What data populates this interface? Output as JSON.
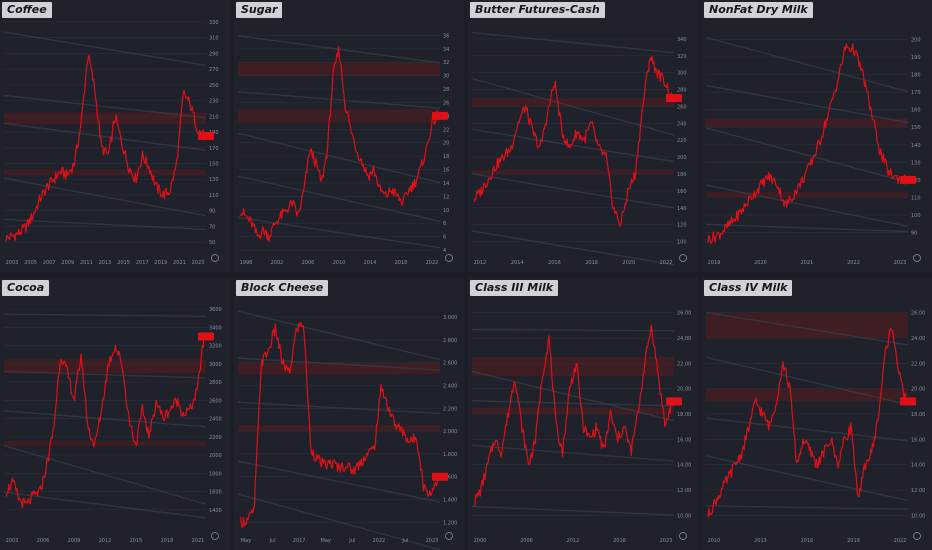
{
  "colors": {
    "background": "#1f222b",
    "line": "#e01018",
    "badge": "#e01018",
    "band": "#4a1e20",
    "text": "#8a8f9a"
  },
  "chart_data": [
    {
      "type": "line",
      "title": "Coffee",
      "years": [
        "2003",
        "2005",
        "2007",
        "2009",
        "2011",
        "2013",
        "2015",
        "2017",
        "2019",
        "2021",
        "2023"
      ],
      "ylim": [
        40,
        330
      ],
      "y_ticks": [
        "330",
        "310",
        "290",
        "270",
        "250",
        "230",
        "210",
        "190",
        "170",
        "150",
        "130",
        "110",
        "90",
        "70",
        "50"
      ],
      "values": [
        55,
        58,
        62,
        70,
        85,
        105,
        120,
        130,
        140,
        135,
        150,
        200,
        290,
        245,
        170,
        160,
        210,
        175,
        145,
        130,
        160,
        145,
        120,
        110,
        115,
        150,
        240,
        225,
        195,
        185
      ],
      "last_label": "",
      "bands": [
        [
          200,
          215
        ],
        [
          135,
          142
        ]
      ]
    },
    {
      "type": "line",
      "title": "Sugar",
      "years": [
        "1998",
        "2002",
        "2006",
        "2010",
        "2014",
        "2018",
        "2022"
      ],
      "ylim": [
        4,
        38
      ],
      "y_ticks": [
        "36",
        "34",
        "32",
        "30",
        "28",
        "26",
        "24",
        "22",
        "20",
        "18",
        "16",
        "14",
        "12",
        "10",
        "8",
        "6",
        "4"
      ],
      "values": [
        10,
        9,
        8,
        6,
        7,
        6,
        8,
        9,
        10,
        11,
        9,
        13,
        19,
        17,
        14,
        19,
        30,
        34,
        26,
        22,
        19,
        17,
        15,
        16,
        13,
        12,
        13,
        12,
        11,
        13,
        14,
        16,
        19,
        23,
        24
      ],
      "last_label": "",
      "bands": [
        [
          30,
          32
        ],
        [
          23,
          25
        ]
      ]
    },
    {
      "type": "line",
      "title": "Butter Futures-Cash",
      "years": [
        "2012",
        "2014",
        "2016",
        "2018",
        "2020",
        "2022"
      ],
      "ylim": [
        90,
        360
      ],
      "y_ticks": [
        "340",
        "320",
        "300",
        "280",
        "260",
        "240",
        "220",
        "200",
        "180",
        "160",
        "140",
        "120",
        "100"
      ],
      "values": [
        150,
        160,
        175,
        190,
        200,
        210,
        240,
        260,
        230,
        210,
        250,
        290,
        230,
        210,
        230,
        220,
        240,
        210,
        200,
        140,
        120,
        160,
        180,
        260,
        320,
        300,
        290,
        270
      ],
      "last_label": "",
      "bands": [
        [
          260,
          270
        ],
        [
          180,
          185
        ]
      ]
    },
    {
      "type": "line",
      "title": "NonFat Dry Milk",
      "years": [
        "2019",
        "2020",
        "2021",
        "2022",
        "2023"
      ],
      "ylim": [
        80,
        210
      ],
      "y_ticks": [
        "200",
        "190",
        "180",
        "170",
        "160",
        "150",
        "140",
        "130",
        "120",
        "110",
        "100",
        "90"
      ],
      "values": [
        86,
        88,
        92,
        97,
        103,
        110,
        116,
        122,
        118,
        105,
        112,
        120,
        130,
        142,
        158,
        175,
        196,
        194,
        180,
        158,
        136,
        124,
        121,
        120
      ],
      "last_label": "",
      "bands": [
        [
          150,
          155
        ],
        [
          110,
          113
        ]
      ]
    },
    {
      "type": "line",
      "title": "Cocoa",
      "years": [
        "2003",
        "2006",
        "2009",
        "2012",
        "2015",
        "2018",
        "2021"
      ],
      "ylim": [
        1200,
        3700
      ],
      "y_ticks": [
        "3600",
        "3400",
        "3200",
        "3000",
        "2800",
        "2600",
        "2400",
        "2200",
        "2000",
        "1800",
        "1600",
        "1400"
      ],
      "values": [
        1600,
        1700,
        1500,
        1450,
        1550,
        1600,
        1900,
        2300,
        3100,
        2900,
        2600,
        3100,
        2300,
        2100,
        2500,
        3000,
        3200,
        3000,
        2400,
        2100,
        2500,
        2200,
        2600,
        2400,
        2500,
        2600,
        2450,
        2500,
        2700,
        3300
      ],
      "last_label": "",
      "bands": [
        [
          2900,
          3050
        ],
        [
          2100,
          2150
        ]
      ]
    },
    {
      "type": "line",
      "title": "Block Cheese",
      "years": [
        "May",
        "Jul",
        "2017",
        "May",
        "Jul",
        "2022",
        "Jul",
        "2023"
      ],
      "ylim": [
        1.15,
        3.15
      ],
      "y_ticks": [
        "3.000",
        "2.800",
        "2.600",
        "2.400",
        "2.200",
        "2.000",
        "1.800",
        "1.600",
        "1.400",
        "1.200"
      ],
      "values": [
        1.2,
        1.22,
        1.3,
        2.6,
        2.7,
        2.9,
        2.6,
        2.5,
        2.9,
        2.95,
        1.85,
        1.75,
        1.7,
        1.72,
        1.68,
        1.7,
        1.65,
        1.72,
        1.8,
        1.85,
        2.4,
        2.2,
        2.05,
        2.0,
        1.9,
        1.95,
        1.5,
        1.45,
        1.6
      ],
      "last_label": "",
      "bands": [
        [
          2.5,
          2.6
        ],
        [
          2.0,
          2.05
        ]
      ]
    },
    {
      "type": "line",
      "title": "Class III Milk",
      "years": [
        "2000",
        "2006",
        "2012",
        "2018",
        "2023"
      ],
      "ylim": [
        9,
        27
      ],
      "y_ticks": [
        "26.00",
        "24.00",
        "22.00",
        "20.00",
        "18.00",
        "16.00",
        "14.00",
        "12.00",
        "10.00"
      ],
      "values": [
        11,
        12,
        14,
        16,
        15,
        18,
        21,
        17,
        14,
        16,
        21,
        24,
        17,
        15,
        20,
        22,
        17,
        16,
        17,
        15,
        18,
        16,
        17,
        15,
        18,
        22,
        25,
        21,
        17,
        19
      ],
      "last_label": "",
      "bands": [
        [
          21,
          22.5
        ],
        [
          18,
          18.5
        ]
      ]
    },
    {
      "type": "line",
      "title": "Class IV Milk",
      "years": [
        "2010",
        "2013",
        "2016",
        "2019",
        "2022"
      ],
      "ylim": [
        9,
        27
      ],
      "y_ticks": [
        "26.00",
        "24.00",
        "22.00",
        "20.00",
        "18.00",
        "16.00",
        "14.00",
        "12.00",
        "10.00"
      ],
      "values": [
        10,
        11,
        12,
        13,
        14,
        15,
        17,
        19,
        18,
        17,
        19,
        22,
        20,
        14,
        16,
        15,
        14,
        15,
        16,
        14,
        16,
        17,
        11,
        14,
        15,
        18,
        23,
        25,
        21,
        19
      ],
      "last_label": "",
      "bands": [
        [
          24,
          26
        ],
        [
          19,
          20
        ]
      ]
    }
  ]
}
